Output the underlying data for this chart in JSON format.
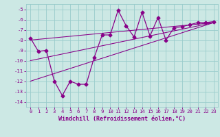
{
  "x": [
    0,
    1,
    2,
    3,
    4,
    5,
    6,
    7,
    8,
    9,
    10,
    11,
    12,
    13,
    14,
    15,
    16,
    17,
    18,
    19,
    20,
    21,
    22,
    23
  ],
  "y_main": [
    -7.8,
    -9.1,
    -9.0,
    -12.0,
    -13.4,
    -12.0,
    -12.3,
    -12.3,
    -9.7,
    -7.5,
    -7.5,
    -5.1,
    -6.6,
    -7.7,
    -5.3,
    -7.6,
    -5.8,
    -8.0,
    -6.8,
    -6.7,
    -6.5,
    -6.3,
    -6.3,
    -6.2
  ],
  "reg_lines": [
    {
      "x0": 0,
      "y0": -8.0,
      "x1": 23,
      "y1": -6.3
    },
    {
      "x0": 0,
      "y0": -10.0,
      "x1": 23,
      "y1": -6.3
    },
    {
      "x0": 0,
      "y0": -12.0,
      "x1": 23,
      "y1": -6.3
    }
  ],
  "bg_color": "#cce8e4",
  "grid_color": "#99cccc",
  "line_color": "#880088",
  "xlim_min": -0.5,
  "xlim_max": 23.5,
  "ylim_min": -14.5,
  "ylim_max": -4.5,
  "yticks": [
    -14,
    -13,
    -12,
    -11,
    -10,
    -9,
    -8,
    -7,
    -6,
    -5
  ],
  "xticks": [
    0,
    1,
    2,
    3,
    4,
    5,
    6,
    7,
    8,
    9,
    10,
    11,
    12,
    13,
    14,
    15,
    16,
    17,
    18,
    19,
    20,
    21,
    22,
    23
  ],
  "xlabel": "Windchill (Refroidissement éolien,°C)",
  "marker": "D",
  "markersize": 2.5,
  "linewidth": 0.9,
  "tick_fontsize": 5.2,
  "label_fontsize": 6.0
}
